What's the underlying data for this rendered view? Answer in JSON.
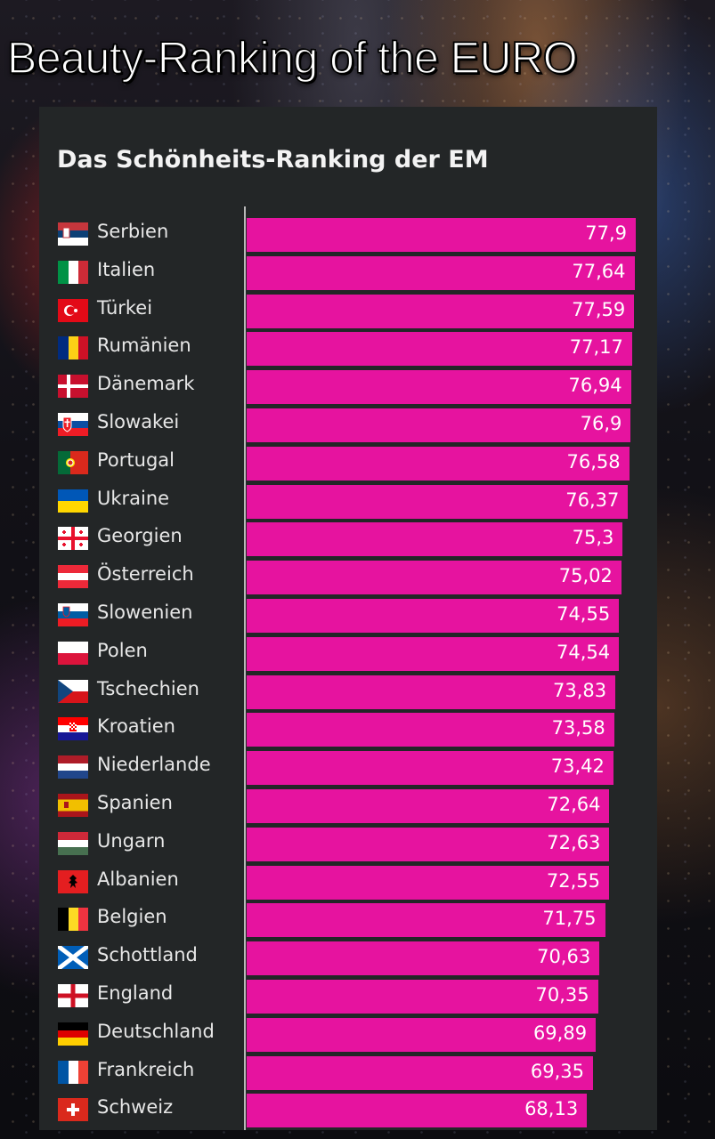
{
  "headline": "Beauty-Ranking of the EURO",
  "chart_data": {
    "type": "bar",
    "orientation": "horizontal",
    "title": "Das Schönheits-Ranking der EM",
    "xlabel": "",
    "ylabel": "",
    "xlim": [
      0,
      77.9
    ],
    "bar_color": "#e6139f",
    "categories": [
      "Serbien",
      "Italien",
      "Türkei",
      "Rumänien",
      "Dänemark",
      "Slowakei",
      "Portugal",
      "Ukraine",
      "Georgien",
      "Österreich",
      "Slowenien",
      "Polen",
      "Tschechien",
      "Kroatien",
      "Niederlande",
      "Spanien",
      "Ungarn",
      "Albanien",
      "Belgien",
      "Schottland",
      "England",
      "Deutschland",
      "Frankreich",
      "Schweiz"
    ],
    "values": [
      77.9,
      77.64,
      77.59,
      77.17,
      76.94,
      76.9,
      76.58,
      76.37,
      75.3,
      75.02,
      74.55,
      74.54,
      73.83,
      73.58,
      73.42,
      72.64,
      72.63,
      72.55,
      71.75,
      70.63,
      70.35,
      69.89,
      69.35,
      68.13
    ],
    "value_labels": [
      "77,9",
      "77,64",
      "77,59",
      "77,17",
      "76,94",
      "76,9",
      "76,58",
      "76,37",
      "75,3",
      "75,02",
      "74,55",
      "74,54",
      "73,83",
      "73,58",
      "73,42",
      "72,64",
      "72,63",
      "72,55",
      "71,75",
      "70,63",
      "70,35",
      "69,89",
      "69,35",
      "68,13"
    ],
    "flag_icons": [
      "serbia-flag-icon",
      "italy-flag-icon",
      "turkey-flag-icon",
      "romania-flag-icon",
      "denmark-flag-icon",
      "slovakia-flag-icon",
      "portugal-flag-icon",
      "ukraine-flag-icon",
      "georgia-flag-icon",
      "austria-flag-icon",
      "slovenia-flag-icon",
      "poland-flag-icon",
      "czechia-flag-icon",
      "croatia-flag-icon",
      "netherlands-flag-icon",
      "spain-flag-icon",
      "hungary-flag-icon",
      "albania-flag-icon",
      "belgium-flag-icon",
      "scotland-flag-icon",
      "england-flag-icon",
      "germany-flag-icon",
      "france-flag-icon",
      "switzerland-flag-icon"
    ]
  }
}
